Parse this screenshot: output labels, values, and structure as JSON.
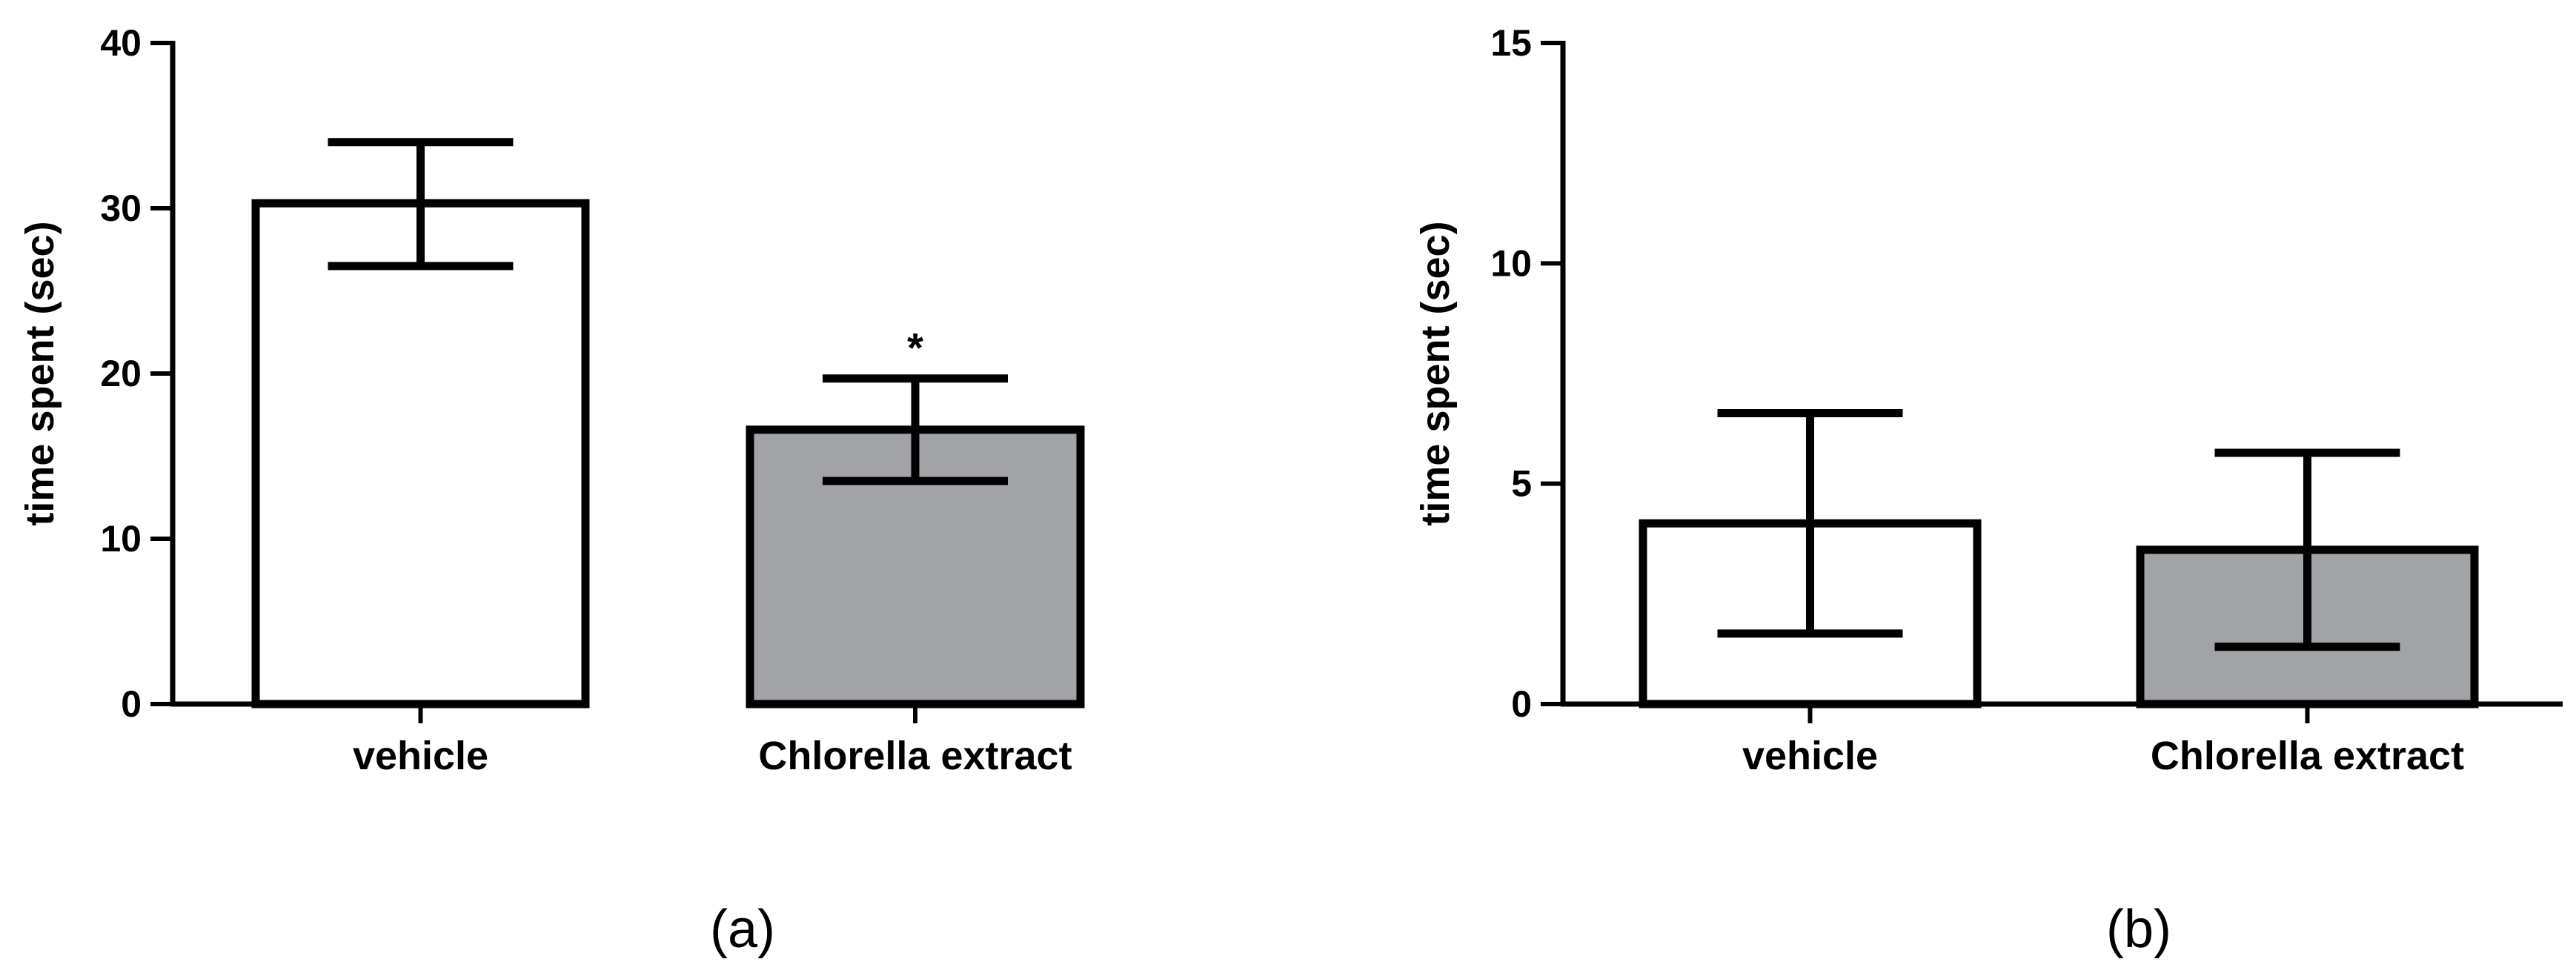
{
  "chart_data": [
    {
      "type": "bar",
      "panel_label": "(a)",
      "categories": [
        "vehicle",
        "Chlorella extract"
      ],
      "values": [
        30.3,
        16.6
      ],
      "error_low": [
        26.5,
        13.5
      ],
      "error_high": [
        34.0,
        19.7
      ],
      "significance": [
        "",
        "*"
      ],
      "bar_colors": [
        "#ffffff",
        "#a2a3a6"
      ],
      "ylabel": "time spent (sec)",
      "xlabel": "",
      "ylim": [
        0,
        40
      ],
      "yticks": [
        0,
        10,
        20,
        30,
        40
      ],
      "ytick_labels": [
        "0",
        "10",
        "20",
        "30",
        "40"
      ],
      "grid": false
    },
    {
      "type": "bar",
      "panel_label": "(b)",
      "categories": [
        "vehicle",
        "Chlorella extract"
      ],
      "values": [
        4.1,
        3.5
      ],
      "error_low": [
        1.6,
        1.3
      ],
      "error_high": [
        6.6,
        5.7
      ],
      "significance": [
        "",
        ""
      ],
      "bar_colors": [
        "#ffffff",
        "#a2a3a6"
      ],
      "ylabel": "time spent (sec)",
      "xlabel": "",
      "ylim": [
        0,
        15
      ],
      "yticks": [
        0,
        5,
        10,
        15
      ],
      "ytick_labels": [
        "0",
        "5",
        "10",
        "15"
      ],
      "grid": false
    }
  ]
}
